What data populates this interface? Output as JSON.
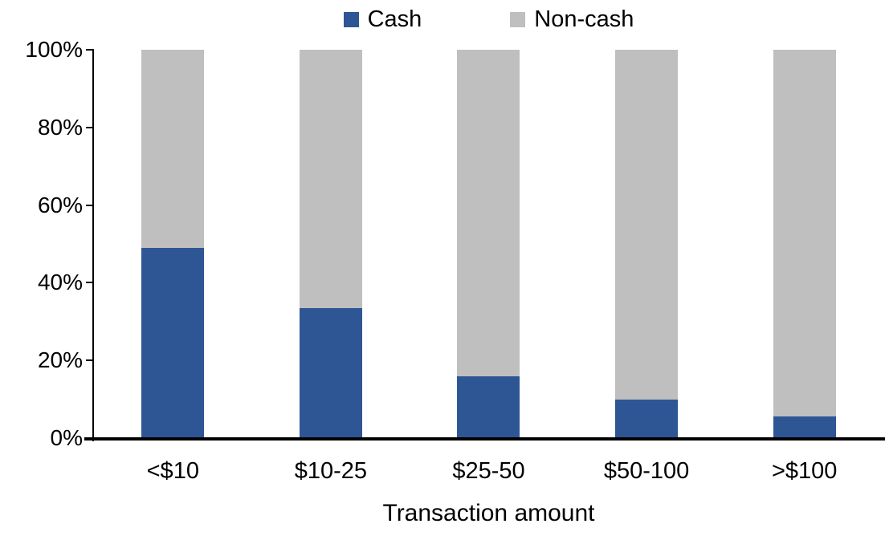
{
  "chart_data": {
    "type": "bar",
    "variant": "stacked-100",
    "categories": [
      "<$10",
      "$10-25",
      "$25-50",
      "$50-100",
      ">$100"
    ],
    "series": [
      {
        "name": "Cash",
        "color": "#2E5695",
        "values": [
          49,
          33.5,
          16,
          10,
          5.5
        ]
      },
      {
        "name": "Non-cash",
        "color": "#BFBFBF",
        "values": [
          51,
          66.5,
          84,
          90,
          94.5
        ]
      }
    ],
    "title": "",
    "xlabel": "Transaction amount",
    "ylabel": "",
    "ylim": [
      0,
      100
    ],
    "y_ticks": [
      {
        "value": 0,
        "label": "0%"
      },
      {
        "value": 20,
        "label": "20%"
      },
      {
        "value": 40,
        "label": "40%"
      },
      {
        "value": 60,
        "label": "60%"
      },
      {
        "value": 80,
        "label": "80%"
      },
      {
        "value": 100,
        "label": "100%"
      }
    ],
    "legend_position": "top-center",
    "grid": false,
    "axis_color": "#000000",
    "background_color": "#FFFFFF"
  }
}
